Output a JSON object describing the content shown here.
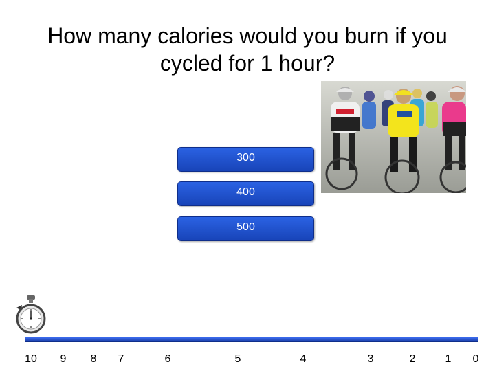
{
  "question": {
    "line1": "How many calories would you burn if you",
    "line2": "cycled for 1 hour?"
  },
  "answers": [
    "300",
    "400",
    "500"
  ],
  "timer": {
    "ticks": [
      "10",
      "9",
      "8",
      "7",
      "6",
      "5",
      "4",
      "3",
      "2",
      "1",
      "0"
    ]
  },
  "colors": {
    "answer_button": "#1f4fd0",
    "timeline_bar": "#2a55d8"
  },
  "icons": {
    "timer": "stopwatch-icon",
    "photo": "cyclists-photo"
  }
}
